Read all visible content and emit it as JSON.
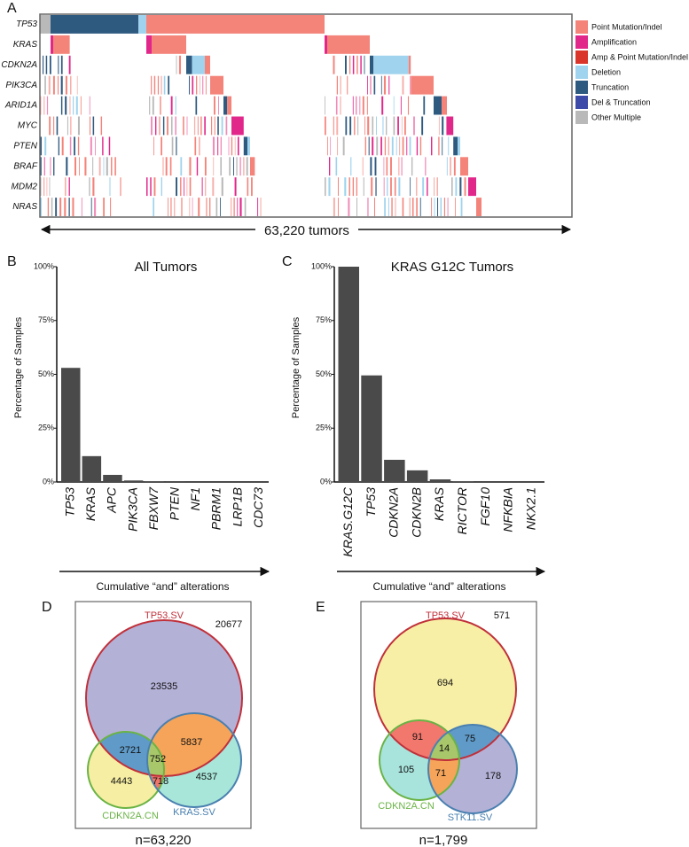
{
  "panels": {
    "a": "A",
    "b": "B",
    "c": "C",
    "d": "D",
    "e": "E"
  },
  "chart_data": [
    {
      "type": "heatmap",
      "panel": "A",
      "genes": [
        "TP53",
        "KRAS",
        "CDKN2A",
        "PIK3CA",
        "ARID1A",
        "MYC",
        "PTEN",
        "BRAF",
        "MDM2",
        "NRAS"
      ],
      "legend": [
        {
          "label": "Point Mutation/Indel",
          "color": "#f4837a"
        },
        {
          "label": "Amplification",
          "color": "#e2278a"
        },
        {
          "label": "Amp & Point Mutation/Indel",
          "color": "#d9352b"
        },
        {
          "label": "Deletion",
          "color": "#9fd3ee"
        },
        {
          "label": "Truncation",
          "color": "#2f5a80"
        },
        {
          "label": "Del & Truncation",
          "color": "#3d4aa8"
        },
        {
          "label": "Other Multiple",
          "color": "#b9b9b9"
        }
      ],
      "xlabel": "63,220 tumors",
      "blocks_fraction_of_tumors": [
        {
          "gene": "TP53",
          "type": "Other Multiple",
          "from": 0,
          "to": 0.02
        },
        {
          "gene": "TP53",
          "type": "Truncation",
          "from": 0.02,
          "to": 0.185
        },
        {
          "gene": "TP53",
          "type": "Deletion",
          "from": 0.185,
          "to": 0.2
        },
        {
          "gene": "TP53",
          "type": "Point Mutation/Indel",
          "from": 0.2,
          "to": 0.535
        },
        {
          "gene": "KRAS",
          "type": "Amplification",
          "from": 0.02,
          "to": 0.025
        },
        {
          "gene": "KRAS",
          "type": "Point Mutation/Indel",
          "from": 0.025,
          "to": 0.056
        },
        {
          "gene": "KRAS",
          "type": "Amplification",
          "from": 0.2,
          "to": 0.21
        },
        {
          "gene": "KRAS",
          "type": "Point Mutation/Indel",
          "from": 0.21,
          "to": 0.275
        },
        {
          "gene": "KRAS",
          "type": "Amplification",
          "from": 0.535,
          "to": 0.54
        },
        {
          "gene": "KRAS",
          "type": "Point Mutation/Indel",
          "from": 0.54,
          "to": 0.62
        },
        {
          "gene": "CDKN2A",
          "type": "Truncation",
          "from": 0.275,
          "to": 0.286
        },
        {
          "gene": "CDKN2A",
          "type": "Deletion",
          "from": 0.286,
          "to": 0.31
        },
        {
          "gene": "CDKN2A",
          "type": "Point Mutation/Indel",
          "from": 0.31,
          "to": 0.32
        },
        {
          "gene": "CDKN2A",
          "type": "Truncation",
          "from": 0.62,
          "to": 0.627
        },
        {
          "gene": "CDKN2A",
          "type": "Deletion",
          "from": 0.627,
          "to": 0.693
        },
        {
          "gene": "CDKN2A",
          "type": "Point Mutation/Indel",
          "from": 0.693,
          "to": 0.697
        },
        {
          "gene": "PIK3CA",
          "type": "Point Mutation/Indel",
          "from": 0.32,
          "to": 0.345
        },
        {
          "gene": "PIK3CA",
          "type": "Point Mutation/Indel",
          "from": 0.697,
          "to": 0.74
        },
        {
          "gene": "ARID1A",
          "type": "Truncation",
          "from": 0.345,
          "to": 0.352
        },
        {
          "gene": "ARID1A",
          "type": "Point Mutation/Indel",
          "from": 0.352,
          "to": 0.36
        },
        {
          "gene": "ARID1A",
          "type": "Truncation",
          "from": 0.74,
          "to": 0.755
        },
        {
          "gene": "ARID1A",
          "type": "Point Mutation/Indel",
          "from": 0.755,
          "to": 0.765
        },
        {
          "gene": "MYC",
          "type": "Amplification",
          "from": 0.36,
          "to": 0.383
        },
        {
          "gene": "MYC",
          "type": "Amplification",
          "from": 0.765,
          "to": 0.777
        },
        {
          "gene": "PTEN",
          "type": "Truncation",
          "from": 0.383,
          "to": 0.39
        },
        {
          "gene": "PTEN",
          "type": "Deletion",
          "from": 0.39,
          "to": 0.395
        },
        {
          "gene": "PTEN",
          "type": "Truncation",
          "from": 0.777,
          "to": 0.785
        },
        {
          "gene": "PTEN",
          "type": "Deletion",
          "from": 0.785,
          "to": 0.79
        },
        {
          "gene": "BRAF",
          "type": "Point Mutation/Indel",
          "from": 0.395,
          "to": 0.404
        },
        {
          "gene": "BRAF",
          "type": "Point Mutation/Indel",
          "from": 0.79,
          "to": 0.805
        },
        {
          "gene": "MDM2",
          "type": "Amplification",
          "from": 0.805,
          "to": 0.82
        },
        {
          "gene": "NRAS",
          "type": "Point Mutation/Indel",
          "from": 0.82,
          "to": 0.83
        }
      ]
    },
    {
      "type": "bar",
      "panel": "B",
      "title": "All Tumors",
      "ylabel": "Percentage of Samples",
      "xlabel": "Cumulative “and” alterations",
      "categories": [
        "TP53",
        "KRAS",
        "APC",
        "PIK3CA",
        "FBXW7",
        "PTEN",
        "NF1",
        "PBRM1",
        "LRP1B",
        "CDC73"
      ],
      "values": [
        53,
        12,
        3.3,
        0.7,
        0.1,
        0.05,
        0,
        0,
        0,
        0
      ],
      "yticks": [
        "0%",
        "25%",
        "50%",
        "75%",
        "100%"
      ],
      "ylim": [
        0,
        100
      ],
      "color": "#4a4a4a"
    },
    {
      "type": "bar",
      "panel": "C",
      "title": "KRAS G12C Tumors",
      "ylabel": "Percentage of Samples",
      "xlabel": "Cumulative “and” alterations",
      "categories": [
        "KRAS.G12C",
        "TP53",
        "CDKN2A",
        "CDKN2B",
        "KRAS",
        "RICTOR",
        "FGF10",
        "NFKBIA",
        "NKX2.1"
      ],
      "values": [
        100,
        49.5,
        10.3,
        5.4,
        1.2,
        0.1,
        0,
        0,
        0
      ],
      "yticks": [
        "0%",
        "25%",
        "50%",
        "75%",
        "100%"
      ],
      "ylim": [
        0,
        100
      ],
      "color": "#4a4a4a"
    },
    {
      "type": "venn",
      "panel": "D",
      "sets": [
        "TP53.SV",
        "CDKN2A.CN",
        "KRAS.SV"
      ],
      "set_colors": [
        "#c0303a",
        "#6ab345",
        "#4a80b0"
      ],
      "regions": {
        "outside": "20677",
        "TP53_only": "23535",
        "TP53_CDKN2A": "2721",
        "TP53_CDKN2A_KRAS": "752",
        "TP53_KRAS": "5837",
        "CDKN2A_only": "4443",
        "CDKN2A_KRAS": "718",
        "KRAS_only": "4537"
      },
      "n": "n=63,220"
    },
    {
      "type": "venn",
      "panel": "E",
      "sets": [
        "TP53.SV",
        "CDKN2A.CN",
        "STK11.SV"
      ],
      "set_colors": [
        "#c0303a",
        "#6ab345",
        "#4a80b0"
      ],
      "regions": {
        "outside": "571",
        "TP53_only": "694",
        "TP53_CDKN2A": "91",
        "TP53_STK11": "75",
        "TP53_CDKN2A_STK11": "14",
        "CDKN2A_only": "105",
        "CDKN2A_STK11": "71",
        "STK11_only": "178"
      },
      "n": "n=1,799"
    }
  ]
}
